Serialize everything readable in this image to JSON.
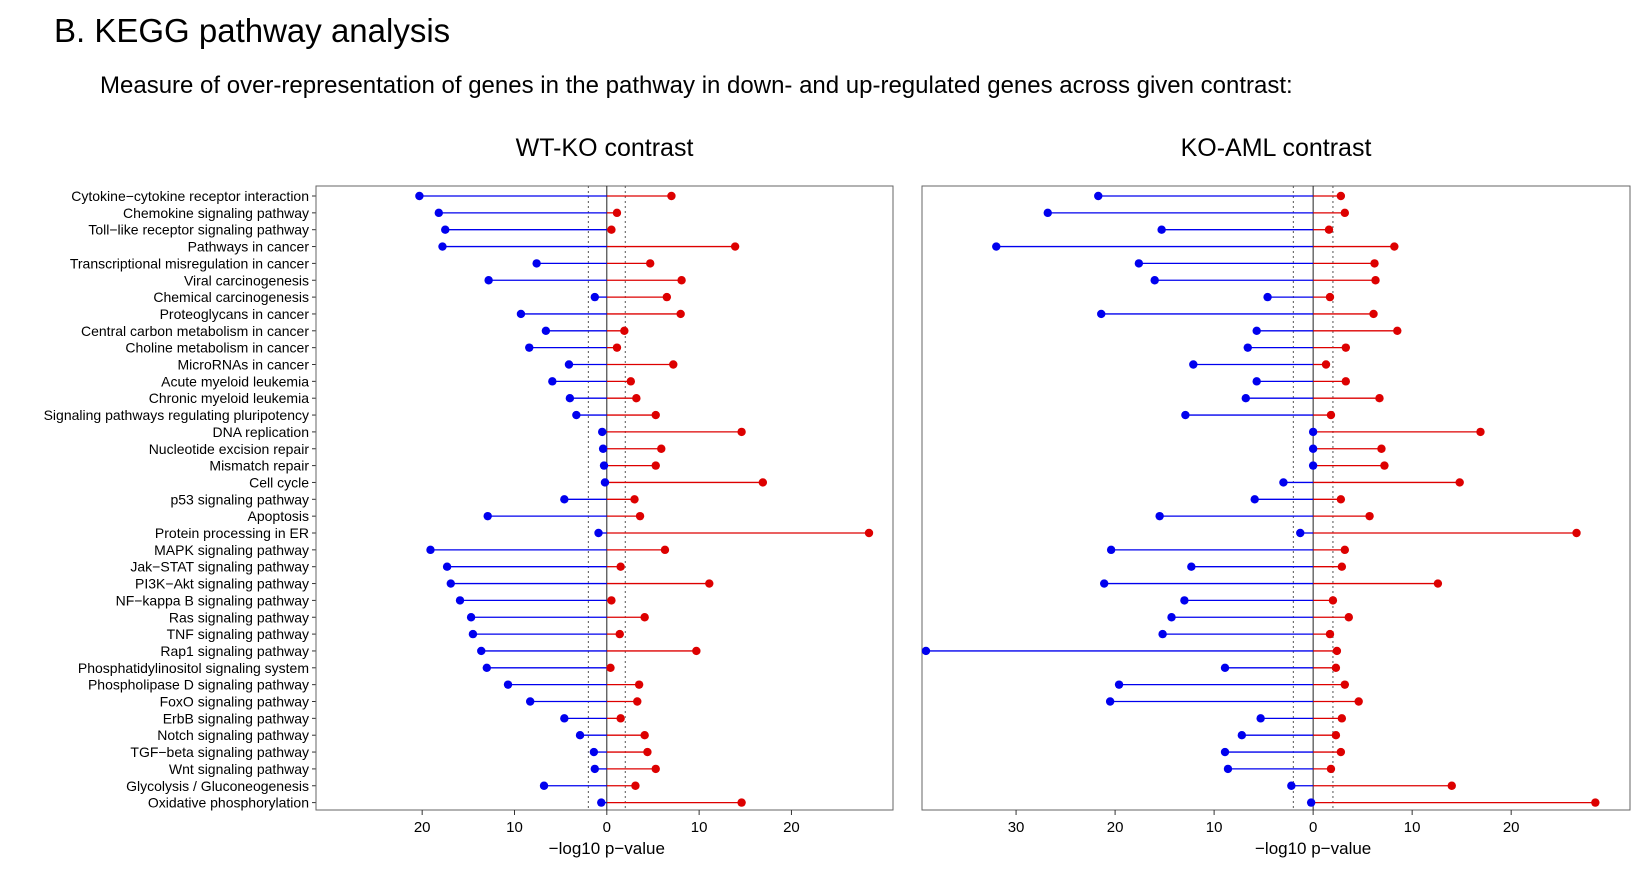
{
  "title": "B. KEGG pathway analysis",
  "subtitle": "Measure of over-representation of genes in the pathway in down- and up-regulated genes across given contrast:",
  "colors": {
    "down": "#0000ee",
    "up": "#dd0000",
    "threshold": "#555555"
  },
  "pathways": [
    "Cytokine−cytokine receptor interaction",
    "Chemokine signaling pathway",
    "Toll−like receptor signaling pathway",
    "Pathways in cancer",
    "Transcriptional misregulation in cancer",
    "Viral carcinogenesis",
    "Chemical carcinogenesis",
    "Proteoglycans in cancer",
    "Central carbon metabolism in cancer",
    "Choline metabolism in cancer",
    "MicroRNAs in cancer",
    "Acute myeloid leukemia",
    "Chronic myeloid leukemia",
    "Signaling pathways regulating pluripotency",
    "DNA replication",
    "Nucleotide excision repair",
    "Mismatch repair",
    "Cell cycle",
    "p53 signaling pathway",
    "Apoptosis",
    "Protein processing in ER",
    "MAPK signaling pathway",
    "Jak−STAT signaling pathway",
    "PI3K−Akt signaling pathway",
    "NF−kappa B signaling pathway",
    "Ras signaling pathway",
    "TNF signaling pathway",
    "Rap1 signaling pathway",
    "Phosphatidylinositol signaling system",
    "Phospholipase D signaling pathway",
    "FoxO signaling pathway",
    "ErbB signaling pathway",
    "Notch signaling pathway",
    "TGF−beta signaling pathway",
    "Wnt signaling pathway",
    "Glycolysis / Gluconeogenesis",
    "Oxidative phosphorylation"
  ],
  "chart_data": [
    {
      "type": "lollipop",
      "title": "WT-KO contrast",
      "xlabel": "−log10 p−value",
      "xlim": [
        -31.5,
        31
      ],
      "xticks": [
        -20,
        -10,
        0,
        10,
        20
      ],
      "xtick_labels": [
        "20",
        "10",
        "0",
        "10",
        "20"
      ],
      "threshold": 2,
      "series": [
        {
          "values": [
            -20.3,
            -18.2,
            -17.5,
            -17.8,
            -7.6,
            -12.8,
            -1.3,
            -9.3,
            -6.6,
            -8.4,
            -4.1,
            -5.9,
            -4.0,
            -3.3,
            -0.5,
            -0.4,
            -0.3,
            -0.2,
            -4.6,
            -12.9,
            -0.9,
            -19.1,
            -17.3,
            -16.9,
            -15.9,
            -14.7,
            -14.5,
            -13.6,
            -13.0,
            -10.7,
            -8.3,
            -4.6,
            -2.9,
            -1.4,
            -1.3,
            -6.8,
            -0.6
          ]
        },
        {
          "values": [
            7.0,
            1.1,
            0.5,
            13.9,
            4.7,
            8.1,
            6.5,
            8.0,
            1.9,
            1.1,
            7.2,
            2.6,
            3.2,
            5.3,
            14.6,
            5.9,
            5.3,
            16.9,
            3.0,
            3.6,
            28.4,
            6.3,
            1.5,
            11.1,
            0.5,
            4.1,
            1.4,
            9.7,
            0.4,
            3.5,
            3.3,
            1.5,
            4.1,
            4.4,
            5.3,
            3.1,
            14.6
          ]
        }
      ]
    },
    {
      "type": "lollipop",
      "title": "KO-AML contrast",
      "xlabel": "−log10 p−value",
      "xlim": [
        -39.5,
        32
      ],
      "xticks": [
        -30,
        -20,
        -10,
        0,
        10,
        20
      ],
      "xtick_labels": [
        "30",
        "20",
        "10",
        "0",
        "10",
        "20"
      ],
      "threshold": 2,
      "series": [
        {
          "values": [
            -21.7,
            -26.8,
            -15.3,
            -32.0,
            -17.6,
            -16.0,
            -4.6,
            -21.4,
            -5.7,
            -6.6,
            -12.1,
            -5.7,
            -6.8,
            -12.9,
            0.0,
            0.0,
            0.0,
            -3.0,
            -5.9,
            -15.5,
            -1.3,
            -20.4,
            -12.3,
            -21.1,
            -13.0,
            -14.3,
            -15.2,
            -39.1,
            -8.9,
            -19.6,
            -20.5,
            -5.3,
            -7.2,
            -8.9,
            -8.6,
            -2.2,
            -0.2
          ]
        },
        {
          "values": [
            2.8,
            3.2,
            1.6,
            8.2,
            6.2,
            6.3,
            1.7,
            6.1,
            8.5,
            3.3,
            1.3,
            3.3,
            6.7,
            1.8,
            16.9,
            6.9,
            7.2,
            14.8,
            2.8,
            5.7,
            26.6,
            3.2,
            2.9,
            12.6,
            2.0,
            3.6,
            1.7,
            2.4,
            2.3,
            3.2,
            4.6,
            2.9,
            2.3,
            2.8,
            1.8,
            14.0,
            28.5
          ]
        }
      ]
    }
  ]
}
